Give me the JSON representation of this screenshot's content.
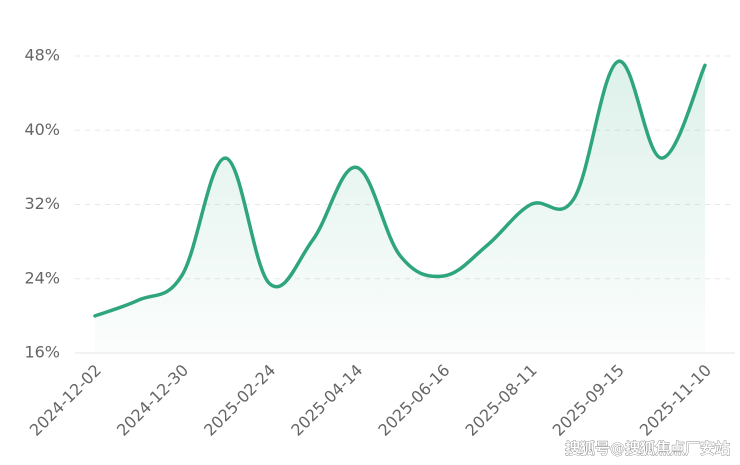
{
  "chart_data": {
    "type": "line",
    "categories": [
      "2024-12-02",
      null,
      "2024-12-30",
      null,
      "2025-02-24",
      null,
      "2025-04-14",
      null,
      "2025-06-16",
      null,
      "2025-08-11",
      null,
      "2025-09-15",
      null,
      "2025-11-10"
    ],
    "values": [
      20,
      21.7,
      24.4,
      37,
      23.5,
      28.2,
      36,
      26.5,
      24.3,
      27.6,
      32,
      32.7,
      47.4,
      37,
      47
    ],
    "color": "#2fa57e",
    "ylim": [
      16,
      48
    ],
    "yticks": [
      {
        "value": 16,
        "label": "16%"
      },
      {
        "value": 24,
        "label": "24%"
      },
      {
        "value": 32,
        "label": "32%"
      },
      {
        "value": 40,
        "label": "40%"
      },
      {
        "value": 48,
        "label": "48%"
      }
    ],
    "grid": true,
    "watermark": "搜狐号@搜狐焦点厂安站"
  }
}
